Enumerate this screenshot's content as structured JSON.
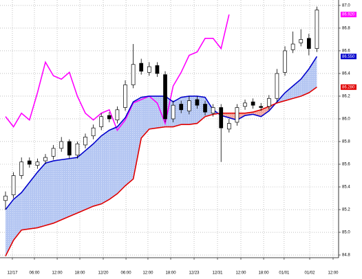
{
  "chart_data": {
    "type": "ichimoku",
    "x": [
      0,
      1,
      2,
      3,
      4,
      5,
      6,
      7,
      8,
      9,
      10,
      11,
      12,
      13,
      14,
      15,
      16,
      17,
      18,
      19,
      20,
      21,
      22,
      23,
      24,
      25,
      26,
      27,
      28,
      29,
      30,
      31,
      32,
      33,
      34,
      35,
      36,
      37,
      38,
      39
    ],
    "open": [
      85.28,
      85.33,
      85.5,
      85.63,
      85.59,
      85.63,
      85.67,
      85.74,
      85.8,
      85.68,
      85.77,
      85.85,
      85.93,
      86.03,
      85.99,
      86.1,
      86.3,
      86.49,
      86.41,
      86.47,
      86.39,
      86.0,
      86.13,
      86.07,
      86.17,
      86.13,
      86.05,
      86.1,
      85.91,
      85.97,
      86.11,
      86.15,
      86.11,
      86.11,
      86.18,
      86.41,
      86.61,
      86.67,
      86.71,
      86.62
    ],
    "high": [
      85.36,
      85.53,
      85.66,
      85.66,
      85.65,
      85.69,
      85.77,
      85.84,
      85.82,
      85.8,
      85.87,
      85.95,
      86.05,
      86.06,
      86.11,
      86.34,
      86.66,
      86.53,
      86.5,
      86.5,
      86.42,
      86.16,
      86.16,
      86.2,
      86.2,
      86.16,
      86.13,
      86.13,
      86.0,
      86.13,
      86.17,
      86.18,
      86.14,
      86.21,
      86.44,
      86.64,
      86.77,
      86.79,
      86.75,
      86.99
    ],
    "low": [
      85.2,
      85.3,
      85.47,
      85.57,
      85.56,
      85.6,
      85.64,
      85.71,
      85.65,
      85.65,
      85.74,
      85.82,
      85.9,
      85.97,
      85.96,
      86.07,
      86.27,
      86.39,
      86.38,
      86.37,
      85.97,
      85.97,
      86.05,
      86.04,
      86.09,
      86.03,
      86.02,
      85.62,
      85.88,
      85.94,
      86.08,
      86.09,
      86.07,
      86.08,
      86.15,
      86.38,
      86.58,
      86.64,
      86.56,
      86.59
    ],
    "close": [
      85.32,
      85.5,
      85.62,
      85.6,
      85.62,
      85.66,
      85.74,
      85.8,
      85.68,
      85.78,
      85.84,
      85.92,
      86.02,
      86.0,
      86.08,
      86.3,
      86.48,
      86.42,
      86.46,
      86.4,
      86.0,
      86.12,
      86.08,
      86.16,
      86.12,
      86.06,
      86.1,
      85.92,
      85.96,
      86.1,
      86.14,
      86.12,
      86.1,
      86.18,
      86.4,
      86.6,
      86.66,
      86.7,
      86.62,
      86.96
    ],
    "series": [
      {
        "color": "#ff00ff",
        "values": [
          86.02,
          85.93,
          86.05,
          85.99,
          86.23,
          86.5,
          86.38,
          86.35,
          86.41,
          86.2,
          86.05,
          85.99,
          86.05,
          86.08,
          85.9,
          85.99,
          86.14,
          86.17,
          86.2,
          86.14,
          85.96,
          86.29,
          86.41,
          86.56,
          86.59,
          86.71,
          86.71,
          86.62,
          86.92,
          null,
          null,
          null,
          null,
          null,
          null,
          null,
          null,
          null,
          null,
          null
        ]
      },
      {
        "color": "#0000cc",
        "values": [
          85.2,
          85.29,
          85.35,
          85.44,
          85.53,
          85.61,
          85.63,
          85.64,
          85.65,
          85.66,
          85.72,
          85.78,
          85.85,
          85.9,
          85.93,
          86.01,
          86.15,
          86.19,
          86.2,
          86.2,
          86.2,
          86.15,
          86.19,
          86.2,
          86.2,
          86.19,
          86.08,
          86.03,
          86.01,
          85.99,
          86.03,
          86.04,
          86.02,
          86.07,
          86.15,
          86.23,
          86.29,
          86.35,
          86.44,
          86.55
        ]
      },
      {
        "color": "#e00000",
        "values": [
          84.79,
          84.93,
          85.02,
          85.03,
          85.04,
          85.06,
          85.08,
          85.11,
          85.14,
          85.17,
          85.2,
          85.23,
          85.25,
          85.29,
          85.34,
          85.41,
          85.47,
          85.83,
          85.91,
          85.92,
          85.93,
          85.93,
          85.95,
          85.95,
          85.96,
          86.02,
          86.04,
          86.05,
          86.05,
          86.05,
          86.05,
          86.06,
          86.08,
          86.11,
          86.14,
          86.16,
          86.18,
          86.2,
          86.23,
          86.28
        ]
      }
    ],
    "cloud_colors": {
      "up": "#b4c6f2",
      "down": "#f2a8a0"
    },
    "last_labels": [
      {
        "label": "86.920",
        "value": 86.92,
        "color": "#ff00ff"
      },
      {
        "label": "86.550",
        "value": 86.55,
        "color": "#0000cc"
      },
      {
        "label": "86.280",
        "value": 86.28,
        "color": "#e00000"
      }
    ],
    "xlim": [
      -0.69,
      41.72
    ],
    "xticks": [
      {
        "value": 0.86,
        "label": "12/17"
      },
      {
        "value": 3.62,
        "label": "06:00"
      },
      {
        "value": 6.47,
        "label": "12:00"
      },
      {
        "value": 9.31,
        "label": "18:00"
      },
      {
        "value": 12.24,
        "label": "12/20"
      },
      {
        "value": 15.09,
        "label": "06:00"
      },
      {
        "value": 17.84,
        "label": "12:00"
      },
      {
        "value": 20.69,
        "label": "18:00"
      },
      {
        "value": 23.62,
        "label": "12/23"
      },
      {
        "value": 26.55,
        "label": "12/31"
      },
      {
        "value": 29.48,
        "label": "12:00"
      },
      {
        "value": 32.33,
        "label": "18:00"
      },
      {
        "value": 34.9,
        "label": "01/01"
      },
      {
        "value": 38.1,
        "label": "01/02"
      },
      {
        "value": 41.03,
        "label": "12:00"
      }
    ],
    "ylim": [
      84.776,
      87.048
    ],
    "yticks": [
      {
        "value": 87,
        "label": "87.0"
      },
      {
        "value": 86.8,
        "label": "86.8"
      },
      {
        "value": 86.6,
        "label": "86.6"
      },
      {
        "value": 86.4,
        "label": "86.4"
      },
      {
        "value": 86.2,
        "label": "86.2"
      },
      {
        "value": 86,
        "label": "86.0"
      },
      {
        "value": 85.8,
        "label": "85.8"
      },
      {
        "value": 85.6,
        "label": "85.6"
      },
      {
        "value": 85.4,
        "label": "85.4"
      },
      {
        "value": 85.2,
        "label": "85.2"
      },
      {
        "value": 85,
        "label": "85.0"
      },
      {
        "value": 84.8,
        "label": "84.8"
      }
    ],
    "grid": true
  }
}
